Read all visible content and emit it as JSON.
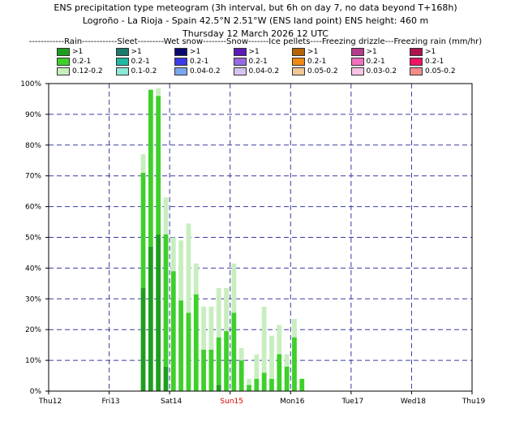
{
  "header": {
    "line1": "ENS precipitation type meteogram (3h interval, but 6h on day 7, no data beyond T+168h)",
    "line2": "Logroño - La Rioja - Spain 42.5°N 2.51°W (ENS land point) ENS height: 460 m",
    "line3": "Thursday 12 March 2026 12 UTC"
  },
  "legend": {
    "heading": "------------Rain------------Sleet---------Wet snow--------Snow-------Ice pellets----Freezing drizzle---Freezing rain (mm/hr)",
    "columns": [
      {
        "items": [
          {
            "color": "#1e9e1e",
            "label": ">1"
          },
          {
            "color": "#3ed02a",
            "label": "0.2-1"
          },
          {
            "color": "#c8eec0",
            "label": "0.12-0.2"
          }
        ]
      },
      {
        "items": [
          {
            "color": "#1c7a6a",
            "label": ">1"
          },
          {
            "color": "#20b8a0",
            "label": "0.2-1"
          },
          {
            "color": "#8ee8d8",
            "label": "0.1-0.2"
          }
        ]
      },
      {
        "items": [
          {
            "color": "#0a0a6e",
            "label": ">1"
          },
          {
            "color": "#3a3ae8",
            "label": "0.2-1"
          },
          {
            "color": "#7aa8f0",
            "label": "0.04-0.2"
          }
        ]
      },
      {
        "items": [
          {
            "color": "#5a1ab4",
            "label": ">1"
          },
          {
            "color": "#9a6ae0",
            "label": "0.2-1"
          },
          {
            "color": "#d6c4f0",
            "label": "0.04-0.2"
          }
        ]
      },
      {
        "items": [
          {
            "color": "#b4640a",
            "label": ">1"
          },
          {
            "color": "#f08a14",
            "label": "0.2-1"
          },
          {
            "color": "#f0c896",
            "label": "0.05-0.2"
          }
        ]
      },
      {
        "items": [
          {
            "color": "#b43c8c",
            "label": ">1"
          },
          {
            "color": "#f070c0",
            "label": "0.2-1"
          },
          {
            "color": "#f8c4e4",
            "label": "0.03-0.2"
          }
        ]
      },
      {
        "items": [
          {
            "color": "#aa1450",
            "label": ">1"
          },
          {
            "color": "#f01464",
            "label": "0.2-1"
          },
          {
            "color": "#f08c8c",
            "label": "0.05-0.2"
          }
        ]
      }
    ]
  },
  "chart_data": {
    "type": "bar",
    "stacked": true,
    "ylim": [
      0,
      100
    ],
    "xlim": [
      0,
      56
    ],
    "x_unit": "3-hour steps from Thu12 00 UTC",
    "y_ticks": [
      {
        "value": 0,
        "label": "0%"
      },
      {
        "value": 10,
        "label": "10%"
      },
      {
        "value": 20,
        "label": "20%"
      },
      {
        "value": 30,
        "label": "30%"
      },
      {
        "value": 40,
        "label": "40%"
      },
      {
        "value": 50,
        "label": "50%"
      },
      {
        "value": 60,
        "label": "60%"
      },
      {
        "value": 70,
        "label": "70%"
      },
      {
        "value": 80,
        "label": "80%"
      },
      {
        "value": 90,
        "label": "90%"
      },
      {
        "value": 100,
        "label": "100%"
      }
    ],
    "x_ticks": [
      {
        "x": 0,
        "label": "Thu12",
        "color": "#000000"
      },
      {
        "x": 8,
        "label": "Fri13",
        "color": "#000000"
      },
      {
        "x": 16,
        "label": "Sat14",
        "color": "#000000"
      },
      {
        "x": 24,
        "label": "Sun15",
        "color": "#dd0000"
      },
      {
        "x": 32,
        "label": "Mon16",
        "color": "#000000"
      },
      {
        "x": 40,
        "label": "Tue17",
        "color": "#000000"
      },
      {
        "x": 48,
        "label": "Wed18",
        "color": "#000000"
      },
      {
        "x": 56,
        "label": "Thu19",
        "color": "#000000"
      }
    ],
    "series_colors": {
      "heavy": "#1e9e1e",
      "moderate": "#3ed02a",
      "light": "#c8eec0"
    },
    "bars": [
      {
        "x": 12.5,
        "heavy": 33.5,
        "moderate": 37.5,
        "light": 6
      },
      {
        "x": 13.5,
        "heavy": 47,
        "moderate": 51,
        "light": 0
      },
      {
        "x": 14.5,
        "heavy": 51,
        "moderate": 45,
        "light": 2.5
      },
      {
        "x": 15.5,
        "heavy": 8,
        "moderate": 43,
        "light": 12
      },
      {
        "x": 16.5,
        "heavy": 0,
        "moderate": 39,
        "light": 11
      },
      {
        "x": 17.5,
        "heavy": 0,
        "moderate": 29.5,
        "light": 19.5
      },
      {
        "x": 18.5,
        "heavy": 0,
        "moderate": 25.5,
        "light": 29
      },
      {
        "x": 19.5,
        "heavy": 0,
        "moderate": 31.5,
        "light": 10
      },
      {
        "x": 20.5,
        "heavy": 0,
        "moderate": 13.5,
        "light": 14
      },
      {
        "x": 21.5,
        "heavy": 0,
        "moderate": 13.5,
        "light": 14
      },
      {
        "x": 22.5,
        "heavy": 2,
        "moderate": 15.5,
        "light": 16
      },
      {
        "x": 23.5,
        "heavy": 0,
        "moderate": 19.5,
        "light": 14
      },
      {
        "x": 24.5,
        "heavy": 0,
        "moderate": 25.5,
        "light": 16
      },
      {
        "x": 25.5,
        "heavy": 0,
        "moderate": 10,
        "light": 4
      },
      {
        "x": 26.5,
        "heavy": 0,
        "moderate": 2,
        "light": 2
      },
      {
        "x": 27.5,
        "heavy": 0,
        "moderate": 4,
        "light": 8
      },
      {
        "x": 28.5,
        "heavy": 0,
        "moderate": 6,
        "light": 21.5
      },
      {
        "x": 29.5,
        "heavy": 0,
        "moderate": 4,
        "light": 14
      },
      {
        "x": 30.5,
        "heavy": 0,
        "moderate": 12,
        "light": 9.5
      },
      {
        "x": 31.5,
        "heavy": 0,
        "moderate": 8,
        "light": 4
      },
      {
        "x": 32.5,
        "heavy": 0,
        "moderate": 17.5,
        "light": 6
      },
      {
        "x": 33.5,
        "heavy": 0,
        "moderate": 4,
        "light": 0
      }
    ]
  }
}
